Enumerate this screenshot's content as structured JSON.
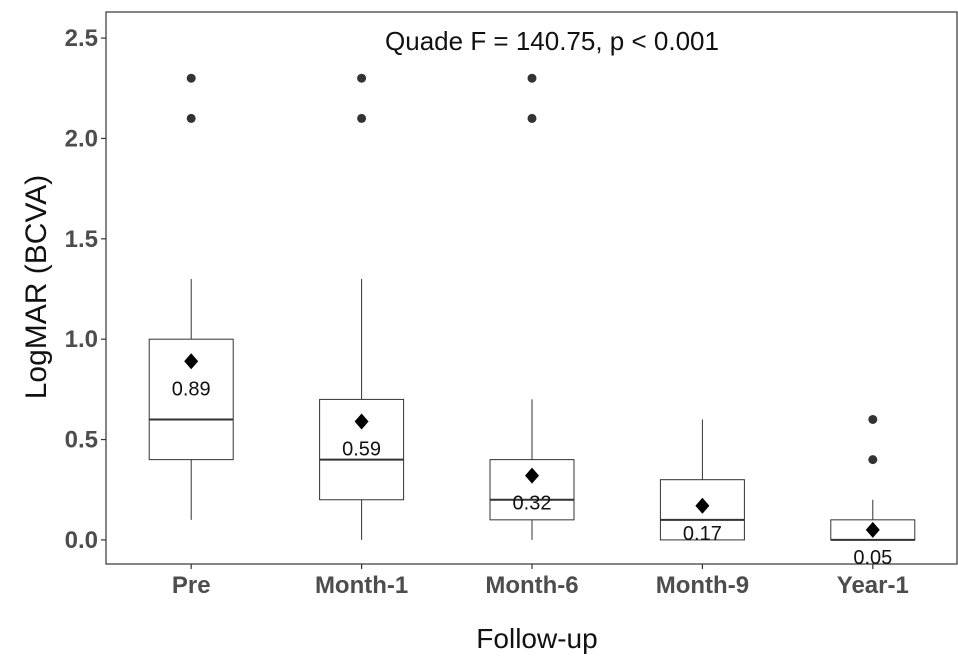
{
  "chart_data": {
    "type": "box",
    "annotation": "Quade F = 140.75, p < 0.001",
    "xlabel": "Follow-up",
    "ylabel": "LogMAR (BCVA)",
    "ylim": [
      -0.12,
      2.63
    ],
    "yticks": [
      0.0,
      0.5,
      1.0,
      1.5,
      2.0,
      2.5
    ],
    "ytick_labels": [
      "0.0",
      "0.5",
      "1.0",
      "1.5",
      "2.0",
      "2.5"
    ],
    "grid": false,
    "categories": [
      "Pre",
      "Month-1",
      "Month-6",
      "Month-9",
      "Year-1"
    ],
    "boxes": [
      {
        "whisker_low": 0.1,
        "q1": 0.4,
        "median": 0.6,
        "q3": 1.0,
        "whisker_high": 1.3,
        "mean": 0.89,
        "mean_label": "0.89",
        "outliers": [
          2.1,
          2.3
        ]
      },
      {
        "whisker_low": 0.0,
        "q1": 0.2,
        "median": 0.4,
        "q3": 0.7,
        "whisker_high": 1.3,
        "mean": 0.59,
        "mean_label": "0.59",
        "outliers": [
          2.1,
          2.3
        ]
      },
      {
        "whisker_low": 0.0,
        "q1": 0.1,
        "median": 0.2,
        "q3": 0.4,
        "whisker_high": 0.7,
        "mean": 0.32,
        "mean_label": "0.32",
        "outliers": [
          2.1,
          2.3
        ]
      },
      {
        "whisker_low": 0.0,
        "q1": 0.0,
        "median": 0.1,
        "q3": 0.3,
        "whisker_high": 0.6,
        "mean": 0.17,
        "mean_label": "0.17",
        "outliers": []
      },
      {
        "whisker_low": 0.0,
        "q1": 0.0,
        "median": 0.0,
        "q3": 0.1,
        "whisker_high": 0.2,
        "mean": 0.05,
        "mean_label": "0.05",
        "outliers": [
          0.4,
          0.6
        ]
      }
    ],
    "colors": {
      "box_fill": "#ffffff",
      "box_stroke": "#333333",
      "median": "#333333",
      "outlier": "#333333",
      "mean_marker": "#000000",
      "panel_border": "#333333"
    }
  }
}
